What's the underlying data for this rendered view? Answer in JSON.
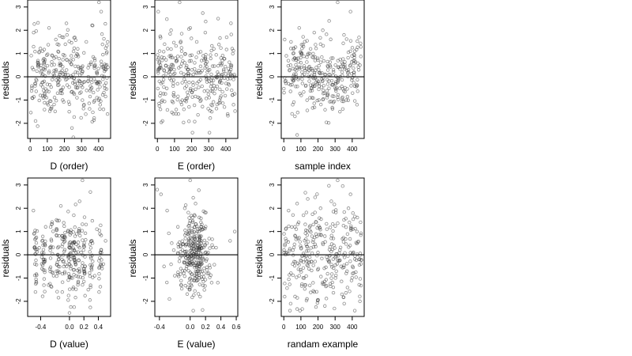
{
  "chart_data": [
    {
      "type": "scatter",
      "xlabel": "D (order)",
      "ylabel": "residuals",
      "xlim": [
        -15,
        470
      ],
      "ylim": [
        -2.65,
        3.3
      ],
      "xticks": [
        0,
        100,
        200,
        300,
        400
      ],
      "yticks": [
        -2,
        -1,
        0,
        1,
        2,
        3
      ],
      "hline": 0,
      "pattern": "order",
      "points": [
        [
          9,
          -0.4
        ],
        [
          20,
          1.9
        ],
        [
          30,
          -0.3
        ],
        [
          45,
          0.6
        ],
        [
          60,
          -0.8
        ],
        [
          72,
          1.1
        ],
        [
          85,
          0.3
        ],
        [
          98,
          -0.6
        ],
        [
          110,
          2.1
        ],
        [
          125,
          -1.3
        ],
        [
          140,
          0.8
        ],
        [
          150,
          1.6
        ],
        [
          165,
          -0.2
        ],
        [
          178,
          0.5
        ],
        [
          190,
          -1.0
        ],
        [
          205,
          0.1
        ],
        [
          215,
          1.8
        ],
        [
          228,
          -1.5
        ],
        [
          240,
          0.9
        ],
        [
          252,
          -2.6
        ],
        [
          265,
          0.2
        ],
        [
          278,
          1.2
        ],
        [
          290,
          -0.7
        ],
        [
          302,
          0.4
        ],
        [
          315,
          -1.2
        ],
        [
          328,
          1.5
        ],
        [
          340,
          0.0
        ],
        [
          352,
          -0.4
        ],
        [
          365,
          2.2
        ],
        [
          378,
          0.7
        ],
        [
          390,
          -0.9
        ],
        [
          402,
          3.2
        ],
        [
          415,
          2.8
        ],
        [
          428,
          -1.4
        ],
        [
          440,
          0.3
        ],
        [
          452,
          -1.6
        ]
      ]
    },
    {
      "type": "scatter",
      "xlabel": "E (order)",
      "ylabel": "residuals",
      "xlim": [
        -15,
        470
      ],
      "ylim": [
        -2.65,
        3.3
      ],
      "xticks": [
        0,
        100,
        200,
        300,
        400
      ],
      "yticks": [
        -2,
        -1,
        0,
        1,
        2,
        3
      ],
      "hline": 0,
      "pattern": "order",
      "points": [
        [
          5,
          2.8
        ],
        [
          18,
          0.5
        ],
        [
          30,
          -1.9
        ],
        [
          42,
          1.4
        ],
        [
          55,
          -0.5
        ],
        [
          68,
          0.2
        ],
        [
          80,
          2.0
        ],
        [
          92,
          -1.1
        ],
        [
          105,
          0.8
        ],
        [
          118,
          -0.3
        ],
        [
          130,
          3.2
        ],
        [
          142,
          1.1
        ],
        [
          155,
          -1.4
        ],
        [
          168,
          0.4
        ],
        [
          180,
          -0.8
        ],
        [
          192,
          2.1
        ],
        [
          205,
          -2.4
        ],
        [
          218,
          0.6
        ],
        [
          230,
          1.5
        ],
        [
          242,
          -0.2
        ],
        [
          255,
          -1.0
        ],
        [
          268,
          0.9
        ],
        [
          280,
          1.9
        ],
        [
          292,
          -0.6
        ],
        [
          305,
          0.3
        ],
        [
          318,
          -1.5
        ],
        [
          330,
          1.2
        ],
        [
          342,
          0.0
        ],
        [
          355,
          2.5
        ],
        [
          368,
          -0.9
        ],
        [
          380,
          0.7
        ],
        [
          392,
          -1.3
        ],
        [
          405,
          1.7
        ],
        [
          418,
          0.2
        ],
        [
          430,
          2.3
        ],
        [
          445,
          -1.2
        ]
      ]
    },
    {
      "type": "scatter",
      "xlabel": "sample index",
      "ylabel": "residuals",
      "xlim": [
        -15,
        470
      ],
      "ylim": [
        -2.65,
        3.3
      ],
      "xticks": [
        0,
        100,
        200,
        300,
        400
      ],
      "yticks": [
        -2,
        -1,
        0,
        1,
        2,
        3
      ],
      "hline": 0,
      "pattern": "wave",
      "points": [
        [
          5,
          1.6
        ],
        [
          15,
          0.9
        ],
        [
          28,
          -0.3
        ],
        [
          40,
          0.5
        ],
        [
          52,
          -1.2
        ],
        [
          65,
          -1.7
        ],
        [
          78,
          -2.5
        ],
        [
          90,
          2.1
        ],
        [
          102,
          -0.8
        ],
        [
          115,
          1.3
        ],
        [
          128,
          -0.4
        ],
        [
          140,
          0.2
        ],
        [
          152,
          1.0
        ],
        [
          165,
          -0.9
        ],
        [
          178,
          1.9
        ],
        [
          190,
          0.4
        ],
        [
          202,
          -0.2
        ],
        [
          215,
          1.4
        ],
        [
          228,
          2.0
        ],
        [
          240,
          0.1
        ],
        [
          252,
          -0.6
        ],
        [
          265,
          2.4
        ],
        [
          278,
          0.8
        ],
        [
          290,
          -1.1
        ],
        [
          302,
          -0.3
        ],
        [
          315,
          3.2
        ],
        [
          328,
          -1.5
        ],
        [
          340,
          0.6
        ],
        [
          352,
          1.8
        ],
        [
          365,
          -1.0
        ],
        [
          378,
          0.3
        ],
        [
          390,
          2.8
        ],
        [
          402,
          -0.7
        ],
        [
          415,
          1.1
        ],
        [
          428,
          -1.2
        ],
        [
          445,
          0.5
        ]
      ]
    },
    {
      "type": "scatter",
      "xlabel": "D (value)",
      "ylabel": "residuals",
      "xlim": [
        -0.58,
        0.57
      ],
      "ylim": [
        -2.65,
        3.3
      ],
      "xticks": [
        -0.4,
        0.0,
        0.2,
        0.4
      ],
      "xtick_labels": [
        "-0.4",
        "0.0",
        "0.2",
        "0.4"
      ],
      "yticks": [
        -2,
        -1,
        0,
        1,
        2,
        3
      ],
      "hline": 0,
      "pattern": "dvalue",
      "points": [
        [
          -0.5,
          1.9
        ],
        [
          -0.48,
          -0.4
        ],
        [
          -0.42,
          0.3
        ],
        [
          -0.38,
          -0.6
        ],
        [
          -0.33,
          1.2
        ],
        [
          -0.29,
          -1.3
        ],
        [
          -0.25,
          0.6
        ],
        [
          -0.22,
          -0.9
        ],
        [
          -0.18,
          1.5
        ],
        [
          -0.15,
          -0.2
        ],
        [
          -0.12,
          2.1
        ],
        [
          -0.1,
          -1.6
        ],
        [
          -0.07,
          0.8
        ],
        [
          -0.04,
          -0.5
        ],
        [
          -0.02,
          1.0
        ],
        [
          0.0,
          -2.5
        ],
        [
          0.02,
          0.4
        ],
        [
          0.04,
          -1.0
        ],
        [
          0.06,
          1.7
        ],
        [
          0.08,
          -0.3
        ],
        [
          0.1,
          0.9
        ],
        [
          0.12,
          -1.2
        ],
        [
          0.14,
          2.3
        ],
        [
          0.16,
          0.1
        ],
        [
          0.18,
          3.2
        ],
        [
          0.2,
          -0.7
        ],
        [
          0.23,
          1.3
        ],
        [
          0.26,
          -1.5
        ],
        [
          0.29,
          2.7
        ],
        [
          0.32,
          0.5
        ],
        [
          0.35,
          -0.9
        ],
        [
          0.38,
          1.1
        ],
        [
          0.41,
          -1.6
        ],
        [
          0.44,
          0.2
        ],
        [
          0.47,
          -0.4
        ],
        [
          0.5,
          0.6
        ]
      ]
    },
    {
      "type": "scatter",
      "xlabel": "E (value)",
      "ylabel": "residuals",
      "xlim": [
        -0.46,
        0.62
      ],
      "ylim": [
        -2.65,
        3.3
      ],
      "xticks": [
        -0.4,
        0.0,
        0.2,
        0.4,
        0.6
      ],
      "xtick_labels": [
        "-0.4",
        "0.0",
        "0.2",
        "0.4",
        "0.6"
      ],
      "yticks": [
        -2,
        -1,
        0,
        1,
        2,
        3
      ],
      "hline": 0,
      "pattern": "evalue",
      "points": [
        [
          -0.43,
          2.8
        ],
        [
          -0.38,
          2.6
        ],
        [
          -0.34,
          -0.5
        ],
        [
          -0.3,
          1.9
        ],
        [
          -0.27,
          -1.9
        ],
        [
          -0.24,
          0.5
        ],
        [
          -0.2,
          -0.9
        ],
        [
          -0.16,
          1.2
        ],
        [
          -0.12,
          -1.3
        ],
        [
          -0.1,
          0.2
        ],
        [
          -0.07,
          2.0
        ],
        [
          -0.05,
          -0.6
        ],
        [
          -0.03,
          0.9
        ],
        [
          -0.01,
          -1.5
        ],
        [
          0.0,
          3.2
        ],
        [
          0.01,
          0.4
        ],
        [
          0.02,
          -0.3
        ],
        [
          0.03,
          1.6
        ],
        [
          0.04,
          -2.4
        ],
        [
          0.05,
          0.8
        ],
        [
          0.06,
          -0.9
        ],
        [
          0.07,
          2.2
        ],
        [
          0.08,
          0.1
        ],
        [
          0.09,
          -1.1
        ],
        [
          0.1,
          1.1
        ],
        [
          0.11,
          -0.4
        ],
        [
          0.12,
          0.6
        ],
        [
          0.13,
          -1.8
        ],
        [
          0.14,
          1.4
        ],
        [
          0.15,
          0.3
        ],
        [
          0.18,
          -0.8
        ],
        [
          0.22,
          0.5
        ],
        [
          0.28,
          -1.2
        ],
        [
          0.36,
          -1.2
        ],
        [
          0.52,
          0.6
        ],
        [
          0.58,
          1.0
        ]
      ]
    },
    {
      "type": "scatter",
      "xlabel": "randam example",
      "ylabel": "residuals",
      "xlim": [
        -15,
        470
      ],
      "ylim": [
        -2.65,
        3.3
      ],
      "xticks": [
        0,
        100,
        200,
        300,
        400
      ],
      "yticks": [
        -2,
        -1,
        0,
        1,
        2,
        3
      ],
      "hline": 0,
      "pattern": "random",
      "points": [
        [
          5,
          -1.8
        ],
        [
          15,
          0.6
        ],
        [
          28,
          1.9
        ],
        [
          40,
          -2.1
        ],
        [
          52,
          -0.4
        ],
        [
          65,
          1.2
        ],
        [
          78,
          2.2
        ],
        [
          90,
          -0.9
        ],
        [
          102,
          0.3
        ],
        [
          115,
          1.7
        ],
        [
          128,
          -1.3
        ],
        [
          140,
          2.4
        ],
        [
          152,
          -0.1
        ],
        [
          165,
          0.8
        ],
        [
          178,
          -1.6
        ],
        [
          190,
          1.4
        ],
        [
          202,
          -0.6
        ],
        [
          215,
          2.0
        ],
        [
          228,
          0.5
        ],
        [
          240,
          -2.2
        ],
        [
          252,
          1.1
        ],
        [
          265,
          -0.3
        ],
        [
          278,
          2.3
        ],
        [
          290,
          0.7
        ],
        [
          302,
          -1.0
        ],
        [
          315,
          3.2
        ],
        [
          328,
          0.2
        ],
        [
          340,
          -1.7
        ],
        [
          352,
          1.5
        ],
        [
          365,
          -0.8
        ],
        [
          378,
          2.0
        ],
        [
          390,
          2.6
        ],
        [
          402,
          -0.5
        ],
        [
          415,
          -2.4
        ],
        [
          428,
          1.0
        ],
        [
          445,
          -2.0
        ]
      ]
    }
  ]
}
